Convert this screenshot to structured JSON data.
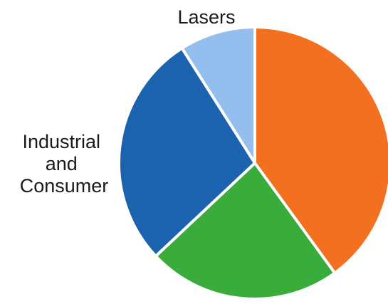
{
  "chart_data": {
    "type": "pie",
    "title": "",
    "slices": [
      {
        "label": "",
        "value": 40,
        "color": "#F37021"
      },
      {
        "label": "",
        "value": 23,
        "color": "#39AC3B"
      },
      {
        "label": "Industrial and Consumer",
        "value": 28,
        "color": "#1B62AF"
      },
      {
        "label": "Lasers",
        "value": 9,
        "color": "#94BEEE"
      }
    ],
    "start_angle_degrees": 0,
    "direction": "clockwise",
    "slice_border_color": "#ffffff"
  }
}
